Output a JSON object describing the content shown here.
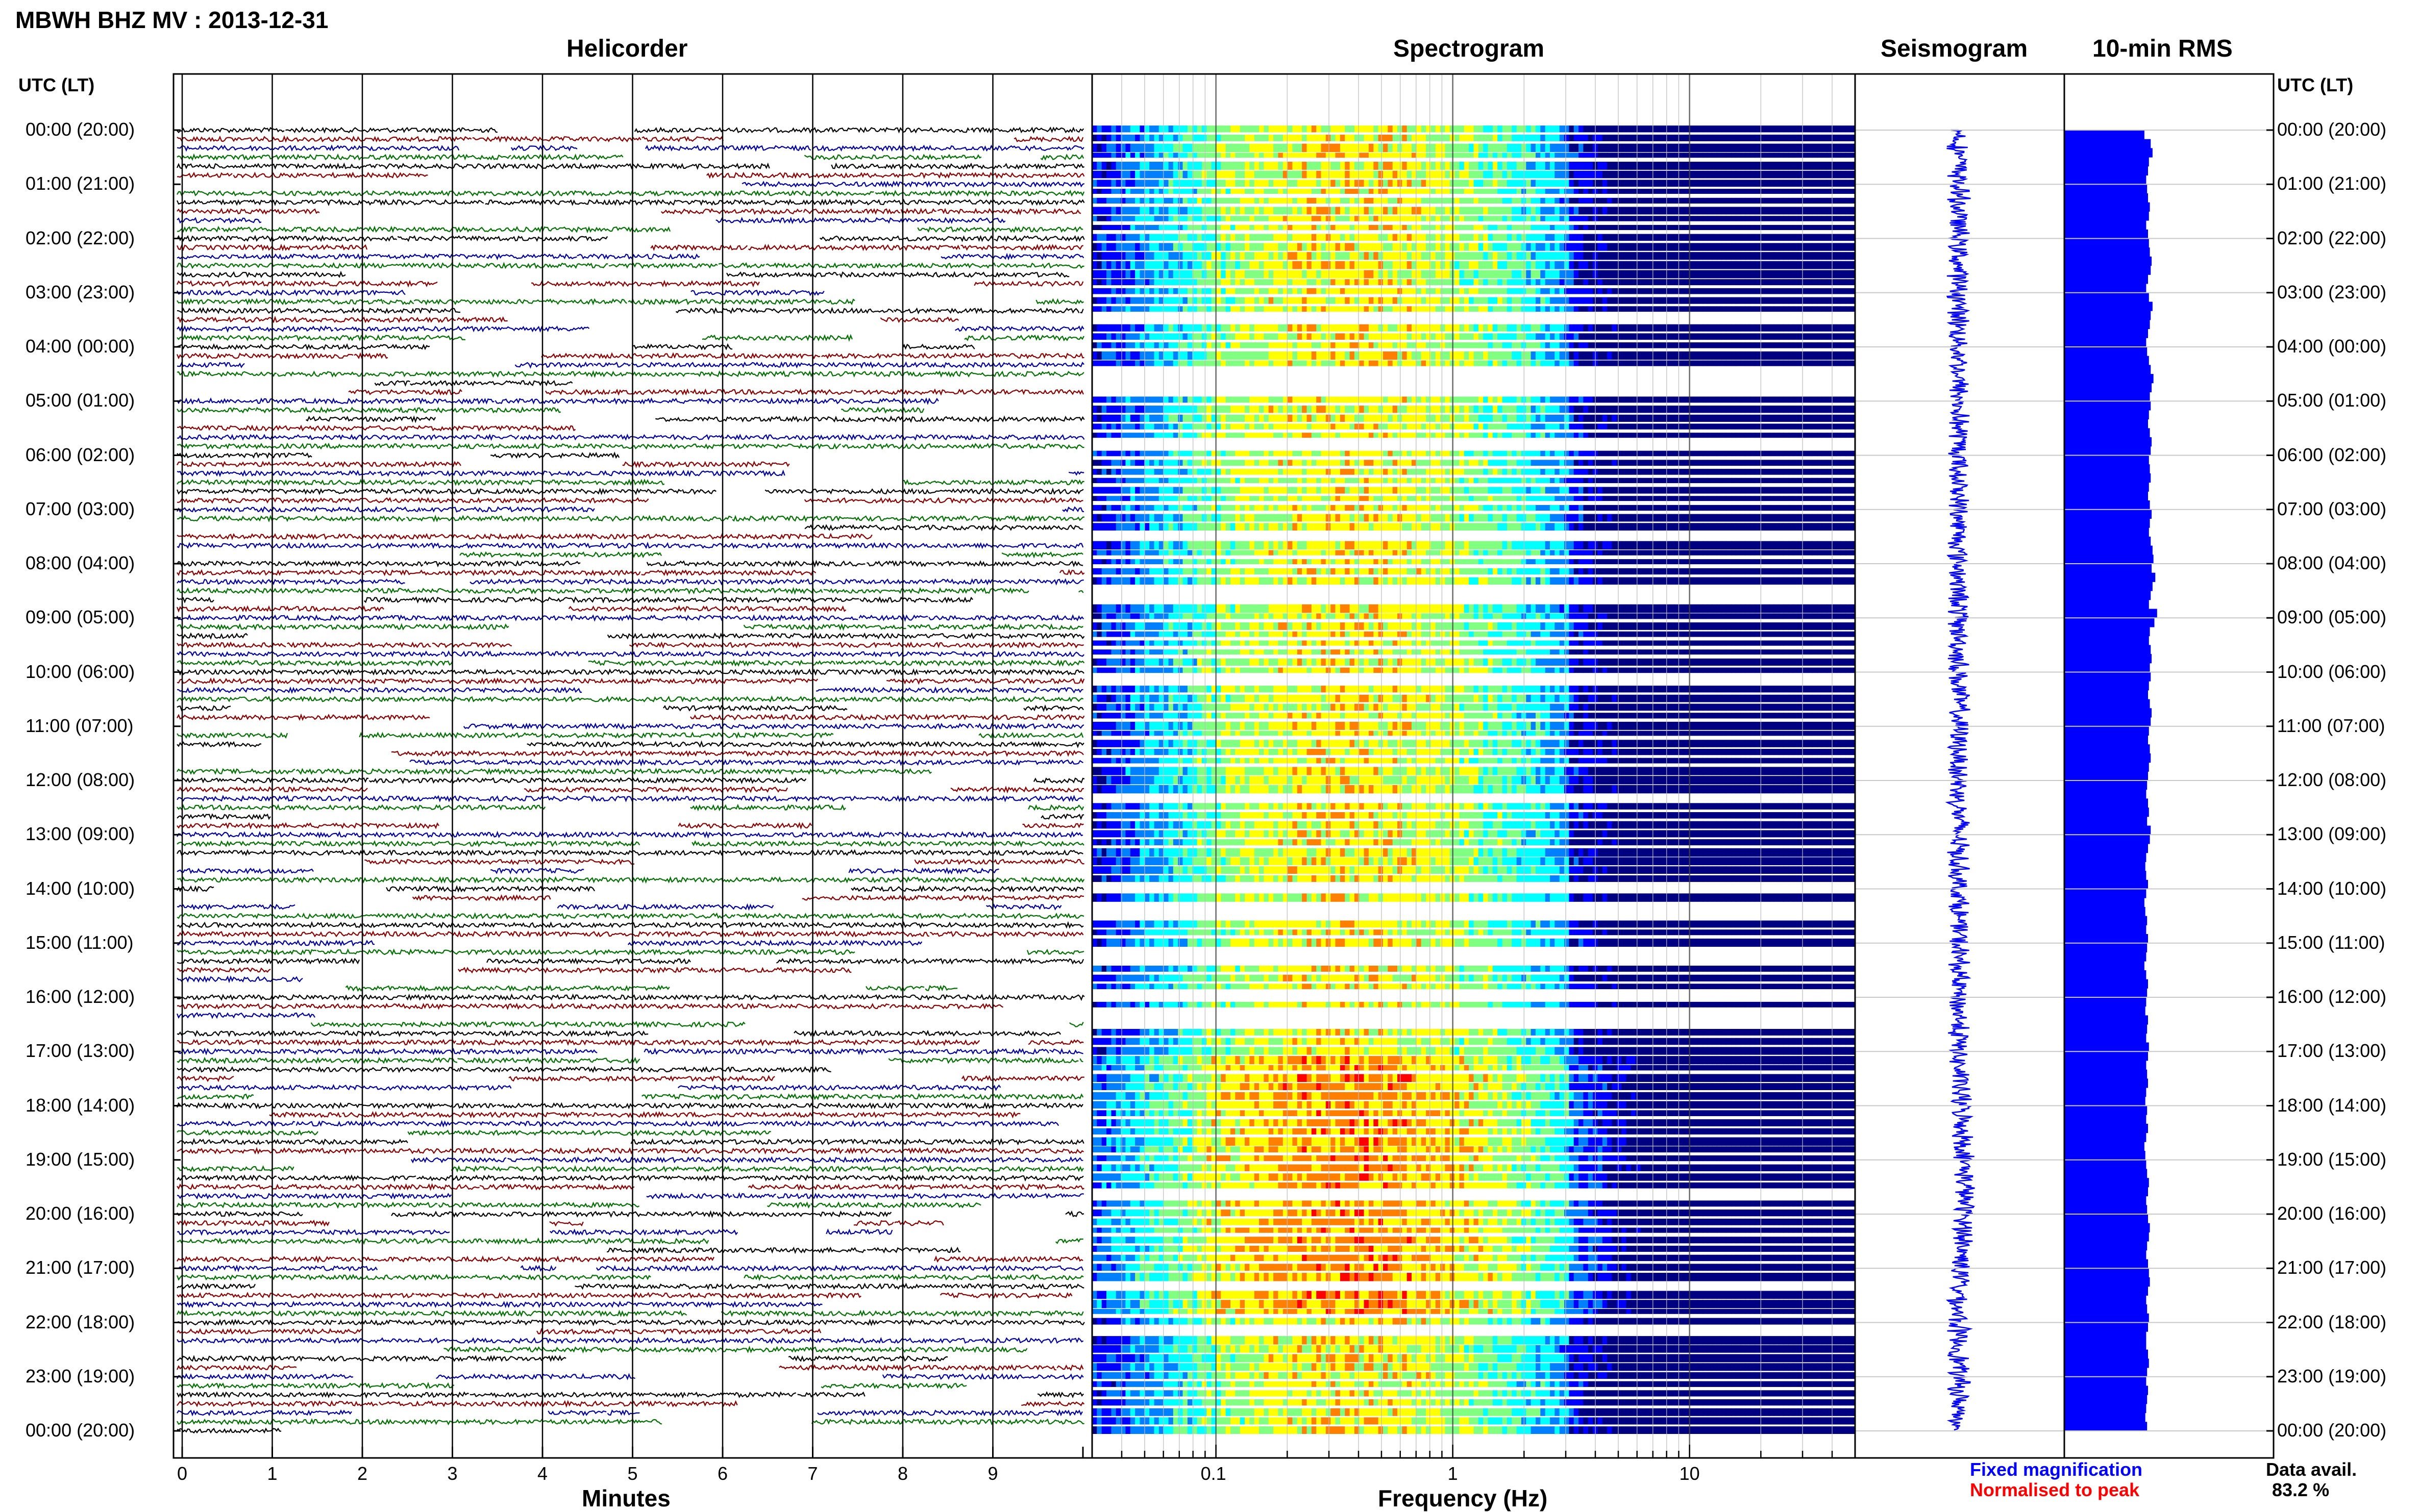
{
  "header": {
    "station_title": "MBWH BHZ MV : 2013-12-31",
    "utc_label_left": "UTC (LT)",
    "utc_label_right": "UTC (LT)"
  },
  "panels": {
    "helicorder_title": "Helicorder",
    "spectrogram_title": "Spectrogram",
    "seismogram_title": "Seismogram",
    "rms_title": "10-min RMS"
  },
  "axes": {
    "minutes_label": "Minutes",
    "frequency_label": "Frequency (Hz)"
  },
  "legend": {
    "fixed": "Fixed magnification",
    "normalised": "Normalised to peak",
    "fixed_color": "#0000ff",
    "normalised_color": "#ff0000"
  },
  "availability": {
    "label": "Data avail.",
    "value": "83.2 %"
  },
  "chart_data": [
    {
      "type": "line",
      "panel": "helicorder",
      "title": "Helicorder",
      "xlabel": "Minutes",
      "x_ticks": [
        "0",
        "1",
        "2",
        "3",
        "4",
        "5",
        "6",
        "7",
        "8",
        "9"
      ],
      "xlim": [
        0,
        10
      ],
      "y_labels": [
        "00:00 (20:00)",
        "01:00 (21:00)",
        "02:00 (22:00)",
        "03:00 (23:00)",
        "04:00 (00:00)",
        "05:00 (01:00)",
        "06:00 (02:00)",
        "07:00 (03:00)",
        "08:00 (04:00)",
        "09:00 (05:00)",
        "10:00 (06:00)",
        "11:00 (07:00)",
        "12:00 (08:00)",
        "13:00 (09:00)",
        "14:00 (10:00)",
        "15:00 (11:00)",
        "16:00 (12:00)",
        "17:00 (13:00)",
        "18:00 (14:00)",
        "19:00 (15:00)",
        "20:00 (16:00)",
        "21:00 (17:00)",
        "22:00 (18:00)",
        "23:00 (19:00)",
        "00:00 (20:00)"
      ],
      "trace_colors": [
        "#000000",
        "#8b0000",
        "#0000a0",
        "#007000"
      ],
      "lines_per_hour": 6
    },
    {
      "type": "heatmap",
      "panel": "spectrogram",
      "title": "Spectrogram",
      "xlabel": "Frequency (Hz)",
      "x_scale": "log",
      "x_ticks": [
        "0.1",
        "1",
        "10"
      ],
      "xlim": [
        0.03,
        50
      ],
      "colormap": [
        "#000080",
        "#0000ff",
        "#0080ff",
        "#00ffff",
        "#80ff80",
        "#ffff00",
        "#ff8000",
        "#ff0000"
      ]
    },
    {
      "type": "line",
      "panel": "seismogram",
      "title": "Seismogram",
      "color": "#0000ff"
    },
    {
      "type": "bar",
      "panel": "rms",
      "title": "10-min RMS",
      "color": "#0000ff",
      "orientation": "horizontal",
      "values": [
        0.88,
        0.95,
        0.97,
        0.93,
        0.92,
        0.9,
        0.91,
        0.92,
        0.94,
        0.93,
        0.9,
        0.92,
        0.93,
        0.94,
        0.96,
        0.95,
        0.92,
        0.9,
        0.93,
        0.97,
        0.95,
        0.94,
        0.92,
        0.9,
        0.91,
        0.93,
        0.95,
        0.98,
        0.96,
        0.94,
        0.95,
        0.93,
        0.92,
        0.94,
        0.96,
        0.95,
        0.93,
        0.94,
        0.95,
        0.93,
        0.92,
        0.94,
        0.96,
        0.94,
        0.93,
        0.95,
        0.97,
        0.98,
        0.96,
        1.0,
        0.97,
        0.95,
        0.93,
        1.02,
        0.99,
        0.94,
        0.93,
        0.95,
        0.96,
        0.94,
        0.95,
        0.93,
        0.92,
        0.94,
        0.96,
        0.95,
        0.93,
        0.92,
        0.94,
        0.95,
        0.93,
        0.92,
        0.91,
        0.9,
        0.92,
        0.93,
        0.91,
        0.95,
        0.94,
        0.92,
        0.9,
        0.89,
        0.9,
        0.92,
        0.9,
        0.88,
        0.89,
        0.91,
        0.9,
        0.92,
        0.91,
        0.9,
        0.88,
        0.9,
        0.92,
        0.91,
        0.9,
        0.89,
        0.92,
        0.91,
        0.9,
        0.93,
        0.92,
        0.9,
        0.91,
        0.92,
        0.9,
        0.89,
        0.91,
        0.9,
        0.92,
        0.9,
        0.88,
        0.89,
        0.9,
        0.91,
        0.93,
        0.92,
        0.9,
        0.91,
        0.92,
        0.94,
        0.93,
        0.91,
        0.9,
        0.92,
        0.93,
        0.94,
        0.92,
        0.9,
        0.91,
        0.93,
        0.92,
        0.9,
        0.9,
        0.92,
        0.93,
        0.91,
        0.9,
        0.92,
        0.91,
        0.9,
        0.89,
        0.91
      ]
    }
  ]
}
